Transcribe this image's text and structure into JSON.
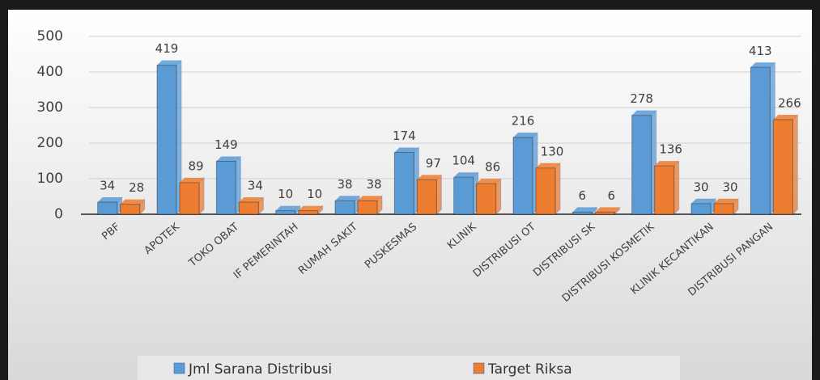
{
  "chart_data": {
    "type": "bar",
    "categories": [
      "PBF",
      "APOTEK",
      "TOKO OBAT",
      "IF PEMERINTAH",
      "RUMAH SAKIT",
      "PUSKESMAS",
      "KLINIK",
      "DISTRIBUSI OT",
      "DISTRIBUSI SK",
      "DISTRIBUSI KOSMETIK",
      "KLINIK KECANTIKAN",
      "DISTRIBUSI PANGAN"
    ],
    "series": [
      {
        "name": "Jml Sarana Distribusi",
        "color": "#5b9bd5",
        "values": [
          34,
          419,
          149,
          10,
          38,
          174,
          104,
          216,
          6,
          278,
          30,
          413
        ]
      },
      {
        "name": "Target Riksa",
        "color": "#ed7d31",
        "values": [
          28,
          89,
          34,
          10,
          38,
          97,
          86,
          130,
          6,
          136,
          30,
          266
        ]
      }
    ],
    "ylim": [
      0,
      500
    ],
    "yticks": [
      0,
      100,
      200,
      300,
      400,
      500
    ],
    "grid": true,
    "legend": "bottom"
  }
}
